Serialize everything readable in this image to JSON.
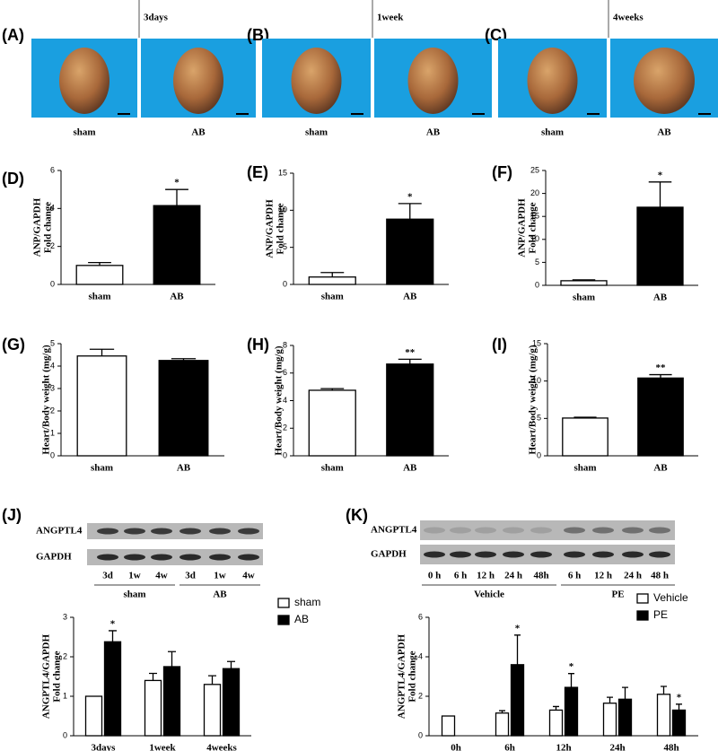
{
  "photo_panels": [
    {
      "label": "(A)",
      "timepoint": "3days",
      "groups": [
        "sham",
        "AB"
      ]
    },
    {
      "label": "(B)",
      "timepoint": "1week",
      "groups": [
        "sham",
        "AB"
      ]
    },
    {
      "label": "(C)",
      "timepoint": "4weeks",
      "groups": [
        "sham",
        "AB"
      ]
    }
  ],
  "blots": [
    {
      "label": "(J)",
      "rows": [
        "ANGPTL4",
        "GAPDH"
      ],
      "lanes": [
        "3d",
        "1w",
        "4w",
        "3d",
        "1w",
        "4w"
      ],
      "groups": [
        "sham",
        "AB"
      ]
    },
    {
      "label": "(K)",
      "rows": [
        "ANGPTL4",
        "GAPDH"
      ],
      "lanes": [
        "0 h",
        "6 h",
        "12 h",
        "24 h",
        "48h",
        "6 h",
        "12 h",
        "24 h",
        "48 h"
      ],
      "groups": [
        "Vehicle",
        "PE"
      ]
    }
  ],
  "chart_data": [
    {
      "type": "bar",
      "label": "(D)",
      "ylabel": [
        "ANP/GAPDH",
        "Fold change"
      ],
      "categories": [
        "sham",
        "AB"
      ],
      "values": [
        1.0,
        4.15
      ],
      "errors": [
        0.15,
        0.85
      ],
      "colors": [
        "#ffffff",
        "#000000"
      ],
      "significance": [
        null,
        "*"
      ],
      "ylim": [
        0,
        6
      ],
      "yticks": [
        0,
        2,
        4,
        6
      ]
    },
    {
      "type": "bar",
      "label": "(E)",
      "ylabel": [
        "ANP/GAPDH",
        "Fold change"
      ],
      "categories": [
        "sham",
        "AB"
      ],
      "values": [
        1.0,
        8.8
      ],
      "errors": [
        0.6,
        2.1
      ],
      "colors": [
        "#ffffff",
        "#000000"
      ],
      "significance": [
        null,
        "*"
      ],
      "ylim": [
        0,
        15
      ],
      "yticks": [
        0,
        5,
        10,
        15
      ]
    },
    {
      "type": "bar",
      "label": "(F)",
      "ylabel": [
        "ANP/GAPDH",
        "Fold change"
      ],
      "categories": [
        "sham",
        "AB"
      ],
      "values": [
        1.0,
        17.0
      ],
      "errors": [
        0.2,
        5.5
      ],
      "colors": [
        "#ffffff",
        "#000000"
      ],
      "significance": [
        null,
        "*"
      ],
      "ylim": [
        0,
        25
      ],
      "yticks": [
        0,
        5,
        10,
        15,
        20,
        25
      ]
    },
    {
      "type": "bar",
      "label": "(G)",
      "ylabel": [
        "Heart/Body weight (mg/g)"
      ],
      "categories": [
        "sham",
        "AB"
      ],
      "values": [
        4.45,
        4.25
      ],
      "errors": [
        0.3,
        0.08
      ],
      "colors": [
        "#ffffff",
        "#000000"
      ],
      "significance": [
        null,
        null
      ],
      "ylim": [
        0,
        5
      ],
      "yticks": [
        0,
        1,
        2,
        3,
        4,
        5
      ]
    },
    {
      "type": "bar",
      "label": "(H)",
      "ylabel": [
        "Heart/Body weight (mg/g)"
      ],
      "categories": [
        "sham",
        "AB"
      ],
      "values": [
        4.75,
        6.65
      ],
      "errors": [
        0.12,
        0.35
      ],
      "colors": [
        "#ffffff",
        "#000000"
      ],
      "significance": [
        null,
        "**"
      ],
      "ylim": [
        0,
        8
      ],
      "yticks": [
        0,
        2,
        4,
        6,
        8
      ]
    },
    {
      "type": "bar",
      "label": "(I)",
      "ylabel": [
        "Heart/Body weight (mg/g)"
      ],
      "categories": [
        "sham",
        "AB"
      ],
      "values": [
        5.05,
        10.4
      ],
      "errors": [
        0.1,
        0.45
      ],
      "colors": [
        "#ffffff",
        "#000000"
      ],
      "significance": [
        null,
        "**"
      ],
      "ylim": [
        0,
        15
      ],
      "yticks": [
        0,
        5,
        10,
        15
      ]
    },
    {
      "type": "grouped_bar",
      "ylabel": [
        "ANGPTL4/GAPDH",
        "Fold change"
      ],
      "categories": [
        "3days",
        "1week",
        "4weeks"
      ],
      "ylim": [
        0,
        3
      ],
      "yticks": [
        0,
        1,
        2,
        3
      ],
      "legend": true,
      "series": [
        {
          "name": "sham",
          "color": "#ffffff",
          "values": [
            1.0,
            1.4,
            1.3
          ],
          "errors": [
            0,
            0.18,
            0.22
          ],
          "significance": [
            null,
            null,
            null
          ]
        },
        {
          "name": "AB",
          "color": "#000000",
          "values": [
            2.38,
            1.75,
            1.7
          ],
          "errors": [
            0.28,
            0.38,
            0.18
          ],
          "significance": [
            "*",
            null,
            null
          ]
        }
      ]
    },
    {
      "type": "grouped_bar",
      "ylabel": [
        "ANGPTL4/GAPDH",
        "Fold change"
      ],
      "categories": [
        "0h",
        "6h",
        "12h",
        "24h",
        "48h"
      ],
      "ylim": [
        0,
        6
      ],
      "yticks": [
        0,
        2,
        4,
        6
      ],
      "legend": true,
      "series": [
        {
          "name": "Vehicle",
          "color": "#ffffff",
          "values": [
            1.0,
            1.15,
            1.3,
            1.65,
            2.1
          ],
          "errors": [
            0,
            0.12,
            0.18,
            0.3,
            0.4
          ],
          "significance": [
            null,
            null,
            null,
            null,
            null
          ]
        },
        {
          "name": "PE",
          "color": "#000000",
          "values": [
            null,
            3.6,
            2.45,
            1.85,
            1.3
          ],
          "errors": [
            null,
            1.5,
            0.7,
            0.6,
            0.3
          ],
          "significance": [
            null,
            "*",
            "*",
            null,
            "*"
          ]
        }
      ]
    }
  ]
}
